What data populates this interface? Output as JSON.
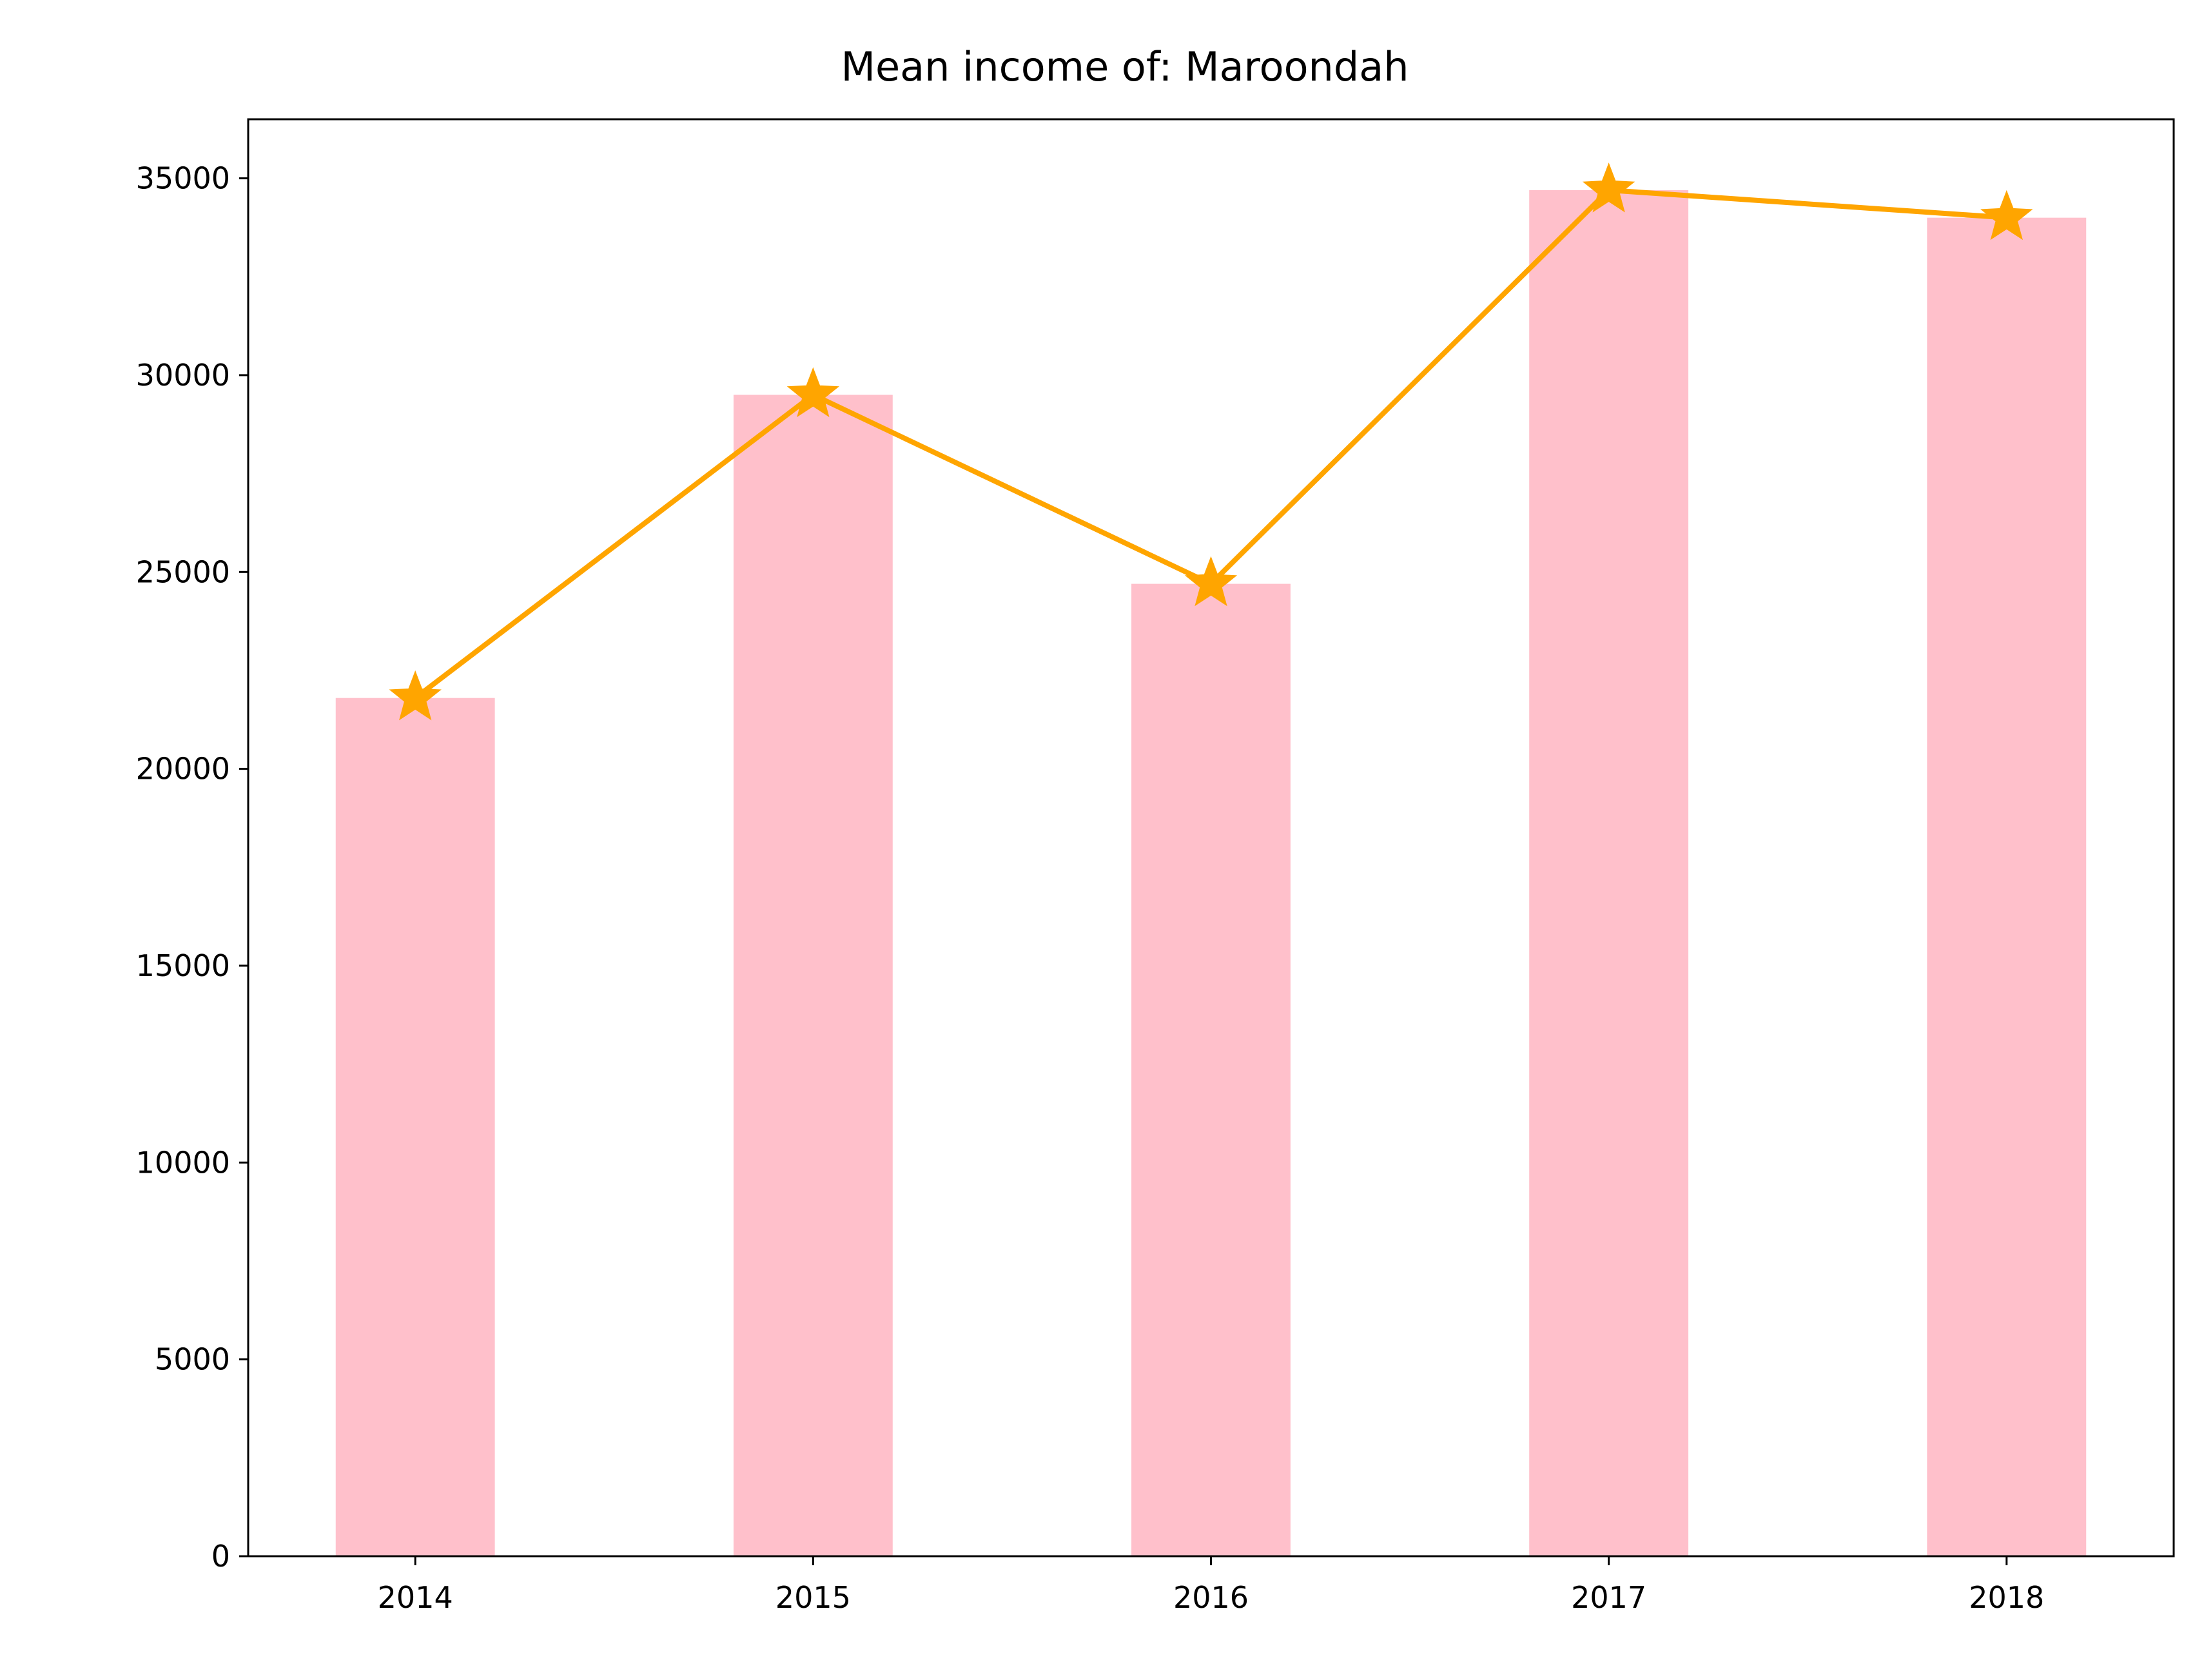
{
  "chart_data": {
    "type": "bar",
    "title": "Mean income of: Maroondah",
    "xlabel": "",
    "ylabel": "",
    "categories": [
      "2014",
      "2015",
      "2016",
      "2017",
      "2018"
    ],
    "series": [
      {
        "kind": "bar",
        "values": [
          21800,
          29500,
          24700,
          34700,
          34000
        ]
      },
      {
        "kind": "line",
        "marker": "star",
        "values": [
          21800,
          29500,
          24700,
          34700,
          34000
        ]
      }
    ],
    "ylim": [
      0,
      36500
    ],
    "yticks": [
      0,
      5000,
      10000,
      15000,
      20000,
      25000,
      30000,
      35000
    ],
    "ytick_labels": [
      "0",
      "5000",
      "10000",
      "15000",
      "20000",
      "25000",
      "30000",
      "35000"
    ],
    "grid": false,
    "colors": {
      "bar": "#ffc0cb",
      "line": "#ffa500",
      "axis": "#000000"
    }
  }
}
